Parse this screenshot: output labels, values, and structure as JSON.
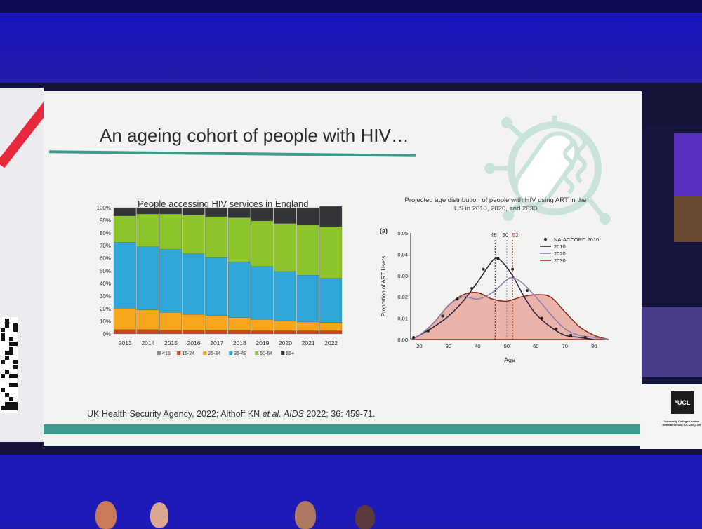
{
  "slide": {
    "title": "An ageing cohort of people with HIV…",
    "citation_pre": "UK Health Security Agency, 2022; Althoff KN ",
    "citation_em": "et al. AIDS",
    "citation_post": " 2022; 36: 459-71."
  },
  "logo": {
    "mark": "ᴬUCL",
    "caption": "University College London Medical School (UCLMS), UK"
  },
  "chart_data": [
    {
      "type": "bar",
      "stacked": true,
      "title": "People accessing HIV services in England",
      "categories": [
        "2013",
        "2014",
        "2015",
        "2016",
        "2017",
        "2018",
        "2019",
        "2020",
        "2021",
        "2022"
      ],
      "yticks": [
        "0%",
        "10%",
        "20%",
        "30%",
        "40%",
        "50%",
        "60%",
        "70%",
        "80%",
        "90%",
        "100%"
      ],
      "ylim": [
        0,
        100
      ],
      "series": [
        {
          "name": "<15",
          "color": "#8d8d8d",
          "values": [
            0.5,
            0.5,
            0.5,
            0.5,
            0.5,
            0.5,
            0.5,
            0.5,
            0.5,
            0.5
          ]
        },
        {
          "name": "15-24",
          "color": "#d2431c",
          "values": [
            3,
            3,
            2.5,
            2.5,
            2.5,
            2.5,
            2,
            2,
            2,
            2
          ]
        },
        {
          "name": "25-34",
          "color": "#f7a51a",
          "values": [
            17,
            15.5,
            14,
            12.5,
            11.5,
            10,
            9,
            8,
            7,
            6.5
          ]
        },
        {
          "name": "35-49",
          "color": "#30a6d8",
          "values": [
            52,
            50,
            50,
            48,
            46,
            44,
            42,
            39,
            37,
            35
          ]
        },
        {
          "name": "50-64",
          "color": "#8cc429",
          "values": [
            21,
            26,
            28,
            30.5,
            32.5,
            35,
            36,
            38,
            40,
            41
          ]
        },
        {
          "name": "65+",
          "color": "#33343a",
          "values": [
            6.5,
            5,
            5,
            6,
            7,
            8,
            10.5,
            12.5,
            13.5,
            16
          ]
        }
      ],
      "grid": false,
      "legend": "bottom"
    },
    {
      "type": "line",
      "title": "Projected age distribution of people with HIV using ART in the US in 2010, 2020, and 2030",
      "panel_label": "(a)",
      "xlabel": "Age",
      "ylabel": "Proportion of ART Users",
      "xticks": [
        20,
        30,
        40,
        50,
        60,
        70,
        80
      ],
      "yticks": [
        "0.00",
        "0.01",
        "0.02",
        "0.03",
        "0.04",
        "0.05"
      ],
      "xlim": [
        17,
        85
      ],
      "ylim": [
        0,
        0.05
      ],
      "legend": "top-right",
      "peak_labels": [
        "46",
        "50",
        "52"
      ],
      "series": [
        {
          "name": "NA-ACCORD 2010",
          "kind": "points",
          "color": "#222222",
          "x": [
            18,
            23,
            28,
            33,
            38,
            42,
            47,
            52,
            57,
            62,
            67,
            72,
            77
          ],
          "y": [
            0.001,
            0.004,
            0.011,
            0.019,
            0.024,
            0.033,
            0.038,
            0.033,
            0.023,
            0.01,
            0.005,
            0.002,
            0.001
          ]
        },
        {
          "name": "2010",
          "kind": "line",
          "color": "#2a2440",
          "x": [
            17,
            20,
            25,
            30,
            35,
            40,
            44,
            46,
            48,
            52,
            56,
            60,
            65,
            70,
            75,
            80
          ],
          "y": [
            0.0,
            0.002,
            0.006,
            0.011,
            0.018,
            0.027,
            0.035,
            0.038,
            0.037,
            0.03,
            0.02,
            0.012,
            0.006,
            0.002,
            0.001,
            0.0
          ]
        },
        {
          "name": "2020",
          "kind": "line",
          "color": "#8a7ab0",
          "x": [
            17,
            20,
            25,
            30,
            35,
            40,
            45,
            50,
            52,
            55,
            60,
            65,
            70,
            75,
            80,
            85
          ],
          "y": [
            0.0,
            0.002,
            0.008,
            0.016,
            0.02,
            0.019,
            0.022,
            0.028,
            0.029,
            0.027,
            0.02,
            0.012,
            0.005,
            0.002,
            0.001,
            0.0
          ]
        },
        {
          "name": "2030",
          "kind": "area",
          "color": "#8a2c1c",
          "x": [
            17,
            20,
            25,
            30,
            35,
            40,
            45,
            50,
            55,
            60,
            65,
            70,
            75,
            80,
            85
          ],
          "y": [
            0.0,
            0.002,
            0.008,
            0.016,
            0.021,
            0.022,
            0.019,
            0.018,
            0.02,
            0.021,
            0.02,
            0.013,
            0.006,
            0.002,
            0.0
          ]
        }
      ]
    }
  ]
}
